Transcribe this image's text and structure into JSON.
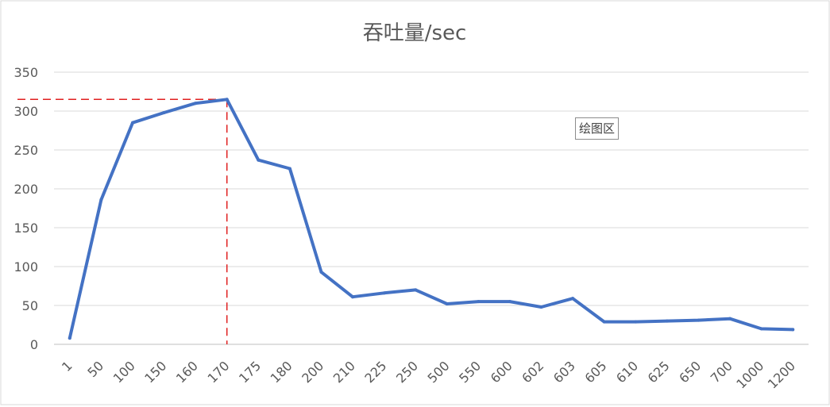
{
  "chart_data": {
    "type": "line",
    "title": "吞吐量/sec",
    "xlabel": "",
    "ylabel": "",
    "categories": [
      "1",
      "50",
      "100",
      "150",
      "160",
      "170",
      "175",
      "180",
      "200",
      "210",
      "225",
      "250",
      "500",
      "550",
      "600",
      "602",
      "603",
      "605",
      "610",
      "625",
      "650",
      "700",
      "1000",
      "1200"
    ],
    "series": [
      {
        "values": [
          8,
          186,
          285,
          298,
          310,
          315,
          237,
          226,
          93,
          61,
          66,
          70,
          52,
          55,
          55,
          48,
          59,
          29,
          29,
          30,
          31,
          33,
          20,
          19
        ]
      }
    ],
    "ylim": [
      0,
      350
    ],
    "yticks": [
      0,
      50,
      100,
      150,
      200,
      250,
      300,
      350
    ],
    "grid": true,
    "legend": "none",
    "annotation": {
      "label": "绘图区",
      "peak_category": "170",
      "peak_value": 315
    },
    "colors": {
      "series": "#4472c4",
      "marker_lines": "#e02020",
      "grid": "#d9d9d9",
      "text": "#595959"
    }
  }
}
